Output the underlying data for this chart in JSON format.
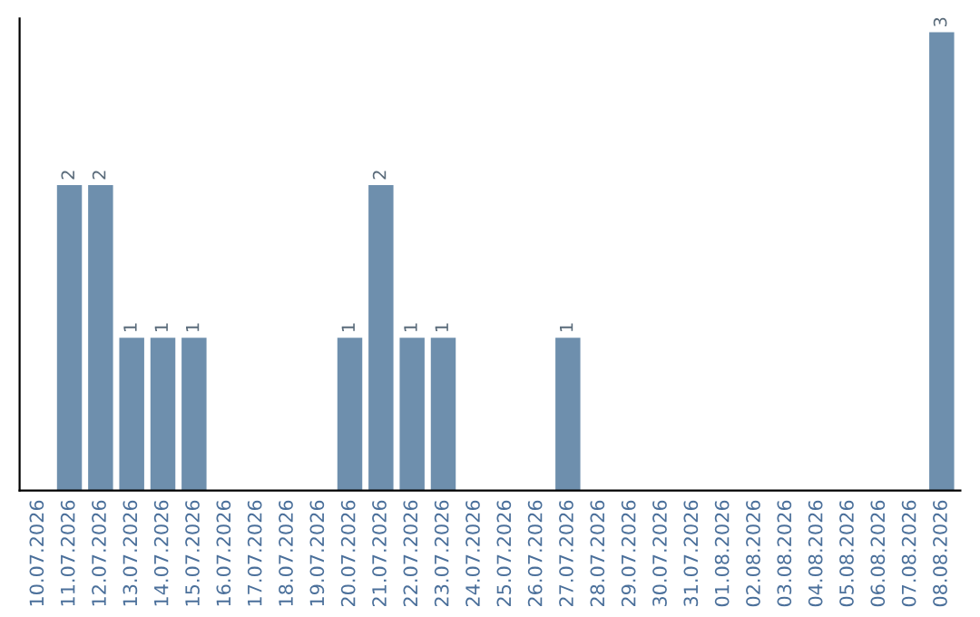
{
  "chart_data": {
    "type": "bar",
    "categories": [
      "10.07.2026",
      "11.07.2026",
      "12.07.2026",
      "13.07.2026",
      "14.07.2026",
      "15.07.2026",
      "16.07.2026",
      "17.07.2026",
      "18.07.2026",
      "19.07.2026",
      "20.07.2026",
      "21.07.2026",
      "22.07.2026",
      "23.07.2026",
      "24.07.2026",
      "25.07.2026",
      "26.07.2026",
      "27.07.2026",
      "28.07.2026",
      "29.07.2026",
      "30.07.2026",
      "31.07.2026",
      "01.08.2026",
      "02.08.2026",
      "03.08.2026",
      "04.08.2026",
      "05.08.2026",
      "06.08.2026",
      "07.08.2026",
      "08.08.2026"
    ],
    "values": [
      0,
      2,
      2,
      1,
      1,
      1,
      0,
      0,
      0,
      0,
      1,
      2,
      1,
      1,
      0,
      0,
      0,
      1,
      0,
      0,
      0,
      0,
      0,
      0,
      0,
      0,
      0,
      0,
      0,
      3
    ],
    "value_labels": [
      null,
      "2",
      "2",
      "1",
      "1",
      "1",
      null,
      null,
      null,
      null,
      "1",
      "2",
      "1",
      "1",
      null,
      null,
      null,
      "1",
      null,
      null,
      null,
      null,
      null,
      null,
      null,
      null,
      null,
      null,
      null,
      "3"
    ],
    "color": "#6e8fad",
    "tick_labels": "x",
    "grid": false,
    "legend": false
  }
}
